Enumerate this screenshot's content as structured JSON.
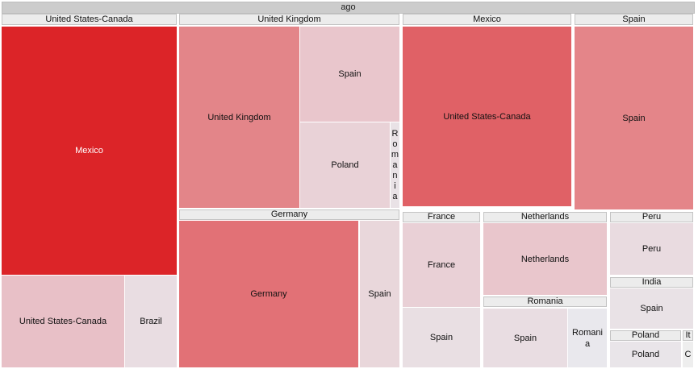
{
  "chart_data": {
    "type": "treemap",
    "title": "ago",
    "groups": [
      {
        "name": "United States-Canada",
        "children": [
          {
            "name": "Mexico",
            "value": 66,
            "color": "#dc2428",
            "dark": true
          },
          {
            "name": "United States-Canada",
            "value": 16,
            "color": "#e8c0c7"
          },
          {
            "name": "Brazil",
            "value": 7,
            "color": "#e9dde2"
          }
        ]
      },
      {
        "name": "United Kingdom",
        "children": [
          {
            "name": "United Kingdom",
            "value": 30,
            "color": "#e38589"
          },
          {
            "name": "Spain",
            "value": 15,
            "color": "#e9c6cc"
          },
          {
            "name": "Poland",
            "value": 11,
            "color": "#e9d2d7"
          },
          {
            "name": "Romania",
            "label_vertical": "R o m a n i a",
            "value": 1.3,
            "color": "#e9e2e6"
          }
        ]
      },
      {
        "name": "Germany",
        "children": [
          {
            "name": "Germany",
            "value": 34,
            "color": "#e27176"
          },
          {
            "name": "Spain",
            "value": 6,
            "color": "#e9d7db"
          }
        ]
      },
      {
        "name": "Mexico",
        "children": [
          {
            "name": "United States-Canada",
            "value": 46,
            "color": "#e06166"
          }
        ]
      },
      {
        "name": "Spain",
        "children": [
          {
            "name": "Spain",
            "value": 35,
            "color": "#e48589"
          }
        ]
      },
      {
        "name": "France",
        "children": [
          {
            "name": "France",
            "value": 9,
            "color": "#e9d0d6"
          },
          {
            "name": "Spain",
            "value": 6,
            "color": "#e9dfe3"
          }
        ]
      },
      {
        "name": "Netherlands",
        "children": [
          {
            "name": "Netherlands",
            "value": 14,
            "color": "#e9c6cc"
          }
        ]
      },
      {
        "name": "Romania",
        "children": [
          {
            "name": "Spain",
            "value": 6,
            "color": "#e9dde2"
          },
          {
            "name": "Romania",
            "label_wrapped": "Romani a",
            "value": 3,
            "color": "#e9e8ed"
          }
        ]
      },
      {
        "name": "Peru",
        "children": [
          {
            "name": "Peru",
            "value": 6,
            "color": "#e9dbe0"
          }
        ]
      },
      {
        "name": "India",
        "children": [
          {
            "name": "Spain",
            "value": 4.5,
            "color": "#e9e2e6"
          }
        ]
      },
      {
        "name": "Poland",
        "children": [
          {
            "name": "Poland",
            "value": 2.7,
            "color": "#e9e5e9"
          }
        ]
      },
      {
        "name": "It",
        "children": [
          {
            "name": "C",
            "value": 0.3,
            "color": "#eeeeee"
          }
        ]
      }
    ]
  }
}
